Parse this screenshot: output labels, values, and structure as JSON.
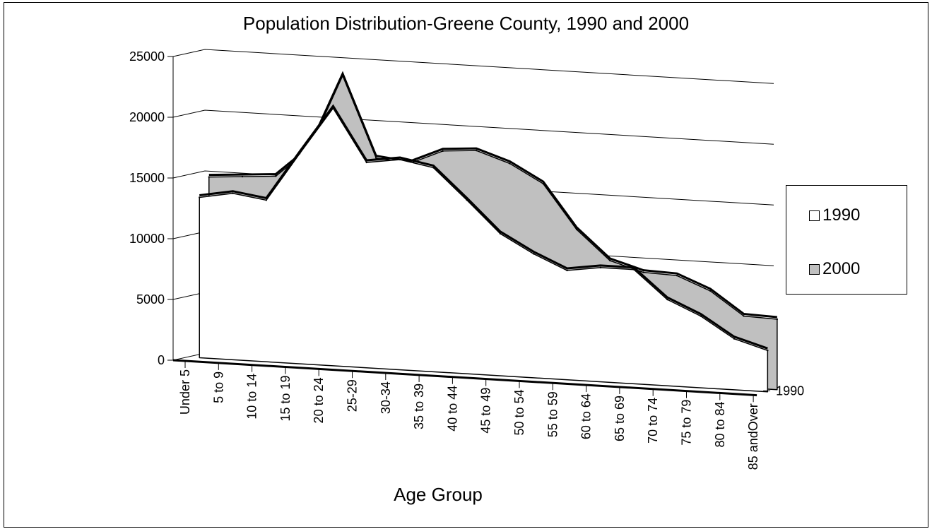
{
  "chart_data": {
    "type": "area",
    "title": "Population Distribution-Greene County, 1990 and 2000",
    "xlabel": "Age Group",
    "ylabel": "",
    "ylim": [
      0,
      25000
    ],
    "yticks": [
      0,
      5000,
      10000,
      15000,
      20000,
      25000
    ],
    "depth_axis_label": "1990",
    "categories": [
      "Under 5",
      "5 to 9",
      "10 to 14",
      "15 to 19",
      "20 to 24",
      "25-29",
      "30-34",
      "35 to 39",
      "40 to 44",
      "45 to 49",
      "50 to 54",
      "55 to 59",
      "60 to 64",
      "65 to 69",
      "70 to 74",
      "75 to 79",
      "80 to 84",
      "85 andOver"
    ],
    "series": [
      {
        "name": "1990",
        "color": "#ffffff",
        "values": [
          13200,
          13700,
          13300,
          17300,
          21200,
          16900,
          17300,
          16800,
          14300,
          11700,
          10200,
          9000,
          9400,
          9400,
          7100,
          5900,
          4200,
          3400
        ]
      },
      {
        "name": "2000",
        "color": "#c0c0c0",
        "values": [
          14700,
          14900,
          15100,
          17500,
          23700,
          17100,
          16800,
          18000,
          18200,
          17300,
          15800,
          12200,
          9800,
          9000,
          8900,
          7800,
          5900,
          5800
        ]
      }
    ],
    "grid": true,
    "legend_position": "right"
  }
}
